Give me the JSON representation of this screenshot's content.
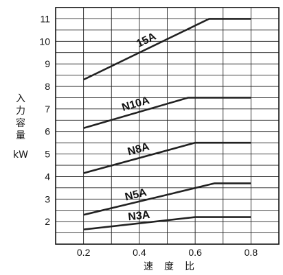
{
  "chart_data": {
    "type": "line",
    "ylabel_chars": [
      "入",
      "力",
      "容",
      "量"
    ],
    "ylabel_unit": "kW",
    "xlabel_chars": [
      "速",
      "度",
      "比"
    ],
    "x_ticks": [
      "0.2",
      "0.4",
      "0.6",
      "0.8"
    ],
    "y_ticks": [
      "2",
      "3",
      "4",
      "5",
      "6",
      "7",
      "8",
      "9",
      "10",
      "11"
    ],
    "xlim": [
      0.1,
      0.9
    ],
    "ylim": [
      1.0,
      11.5
    ],
    "grid": true,
    "series": [
      {
        "name": "15A",
        "x": [
          0.2,
          0.65,
          0.8
        ],
        "y": [
          8.3,
          11.0,
          11.0
        ]
      },
      {
        "name": "N10A",
        "x": [
          0.2,
          0.575,
          0.8
        ],
        "y": [
          6.15,
          7.5,
          7.5
        ]
      },
      {
        "name": "N8A",
        "x": [
          0.2,
          0.6,
          0.8
        ],
        "y": [
          4.15,
          5.5,
          5.5
        ]
      },
      {
        "name": "N5A",
        "x": [
          0.2,
          0.67,
          0.8
        ],
        "y": [
          2.3,
          3.7,
          3.7
        ]
      },
      {
        "name": "N3A",
        "x": [
          0.2,
          0.6,
          0.8
        ],
        "y": [
          1.65,
          2.2,
          2.2
        ]
      }
    ]
  }
}
